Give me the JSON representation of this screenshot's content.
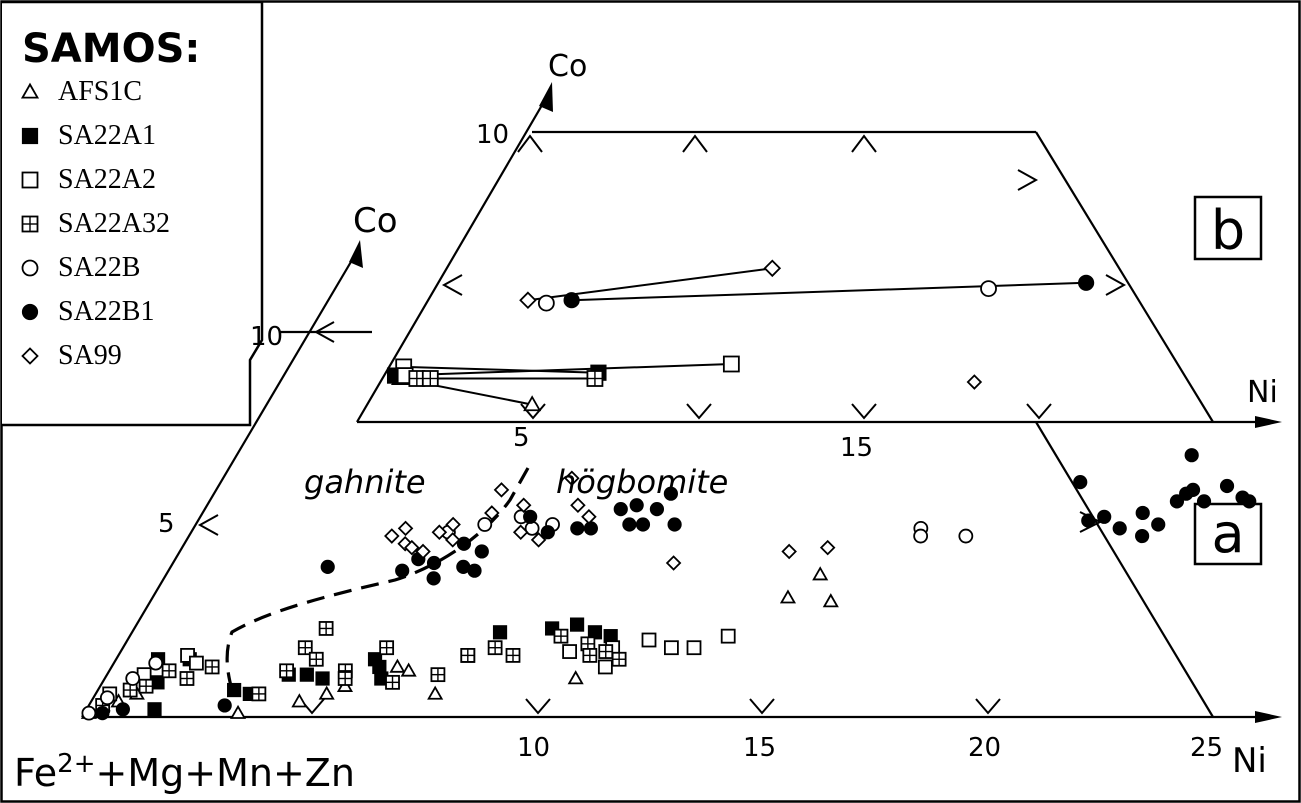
{
  "chart_data": [
    {
      "panel_label": "a",
      "type": "scatter",
      "axes": {
        "x": {
          "label": "Ni",
          "ticks": [
            "10",
            "15",
            "20",
            "25"
          ],
          "range": [
            0,
            25
          ]
        },
        "y": {
          "label": "Co",
          "ticks": [
            "5",
            "10"
          ],
          "range": [
            0,
            12
          ]
        },
        "origin_label": "Fe²⁺+Mg+Mn+Zn"
      },
      "annotations": [
        "gahnite",
        "högbomite"
      ],
      "series": [
        {
          "name": "AFS1C",
          "marker": "triangle-open",
          "points": [
            [
              0.1,
              0.1
            ],
            [
              0.3,
              0.3
            ],
            [
              0.6,
              0.4
            ],
            [
              0.9,
              0.6
            ],
            [
              3.4,
              0.1
            ],
            [
              4.6,
              0.4
            ],
            [
              5.1,
              0.6
            ],
            [
              5.4,
              0.8
            ],
            [
              6.3,
              1.3
            ],
            [
              6.6,
              1.2
            ],
            [
              7.5,
              0.6
            ],
            [
              10.4,
              1.0
            ],
            [
              14.0,
              3.1
            ],
            [
              14.4,
              3.7
            ],
            [
              15.0,
              3.0
            ]
          ]
        },
        {
          "name": "SA22A1",
          "marker": "square-filled",
          "points": [
            [
              0.9,
              1.5
            ],
            [
              1.2,
              0.9
            ],
            [
              1.5,
              0.2
            ],
            [
              1.6,
              1.5
            ],
            [
              3.0,
              0.7
            ],
            [
              3.4,
              0.6
            ],
            [
              4.0,
              1.1
            ],
            [
              4.4,
              1.1
            ],
            [
              4.8,
              1.0
            ],
            [
              5.7,
              1.5
            ],
            [
              5.9,
              1.3
            ],
            [
              6.1,
              1.0
            ],
            [
              8.1,
              2.2
            ],
            [
              9.2,
              2.3
            ],
            [
              9.7,
              2.4
            ],
            [
              10.2,
              2.2
            ],
            [
              10.6,
              2.1
            ]
          ]
        },
        {
          "name": "SA22A2",
          "marker": "square-open",
          "points": [
            [
              0.3,
              0.6
            ],
            [
              0.8,
              1.1
            ],
            [
              1.5,
              1.6
            ],
            [
              1.8,
              1.4
            ],
            [
              7.7,
              1.6
            ],
            [
              9.9,
              1.7
            ],
            [
              10.8,
              1.8
            ],
            [
              10.9,
              1.3
            ],
            [
              11.5,
              2.0
            ],
            [
              12.1,
              1.8
            ],
            [
              12.6,
              1.8
            ],
            [
              13.2,
              2.1
            ]
          ]
        },
        {
          "name": "SA22A32",
          "marker": "square-plus",
          "points": [
            [
              0.3,
              0.3
            ],
            [
              0.7,
              0.7
            ],
            [
              1.0,
              0.8
            ],
            [
              1.3,
              1.2
            ],
            [
              1.8,
              1.0
            ],
            [
              2.2,
              1.3
            ],
            [
              3.6,
              0.6
            ],
            [
              3.9,
              1.2
            ],
            [
              4.0,
              1.8
            ],
            [
              4.2,
              2.3
            ],
            [
              4.4,
              1.5
            ],
            [
              5.2,
              1.2
            ],
            [
              5.3,
              1.0
            ],
            [
              5.8,
              1.8
            ],
            [
              6.4,
              0.9
            ],
            [
              7.3,
              1.1
            ],
            [
              7.7,
              1.6
            ],
            [
              8.2,
              1.8
            ],
            [
              8.7,
              1.6
            ],
            [
              9.5,
              2.1
            ],
            [
              10.2,
              1.9
            ],
            [
              10.4,
              1.6
            ],
            [
              10.7,
              1.7
            ],
            [
              11.1,
              1.5
            ]
          ]
        },
        {
          "name": "SA22B",
          "marker": "circle-open",
          "points": [
            [
              0.1,
              0.1
            ],
            [
              0.3,
              0.5
            ],
            [
              0.6,
              1.0
            ],
            [
              0.9,
              1.4
            ],
            [
              5.6,
              4.8
            ],
            [
              6.3,
              5.0
            ],
            [
              7.0,
              5.2
            ],
            [
              7.4,
              4.9
            ],
            [
              7.8,
              5.0
            ],
            [
              16.0,
              4.9
            ],
            [
              16.1,
              4.7
            ],
            [
              17.1,
              4.7
            ]
          ]
        },
        {
          "name": "SA22B1",
          "marker": "circle-filled",
          "points": [
            [
              0.4,
              0.1
            ],
            [
              0.8,
              0.2
            ],
            [
              3.0,
              0.3
            ],
            [
              3.4,
              3.9
            ],
            [
              5.1,
              3.8
            ],
            [
              5.3,
              4.1
            ],
            [
              5.7,
              4.0
            ],
            [
              5.9,
              3.6
            ],
            [
              6.1,
              4.5
            ],
            [
              6.4,
              3.9
            ],
            [
              6.6,
              4.3
            ],
            [
              6.7,
              3.8
            ],
            [
              7.2,
              5.2
            ],
            [
              7.8,
              4.8
            ],
            [
              8.4,
              4.9
            ],
            [
              8.7,
              4.9
            ],
            [
              9.1,
              5.4
            ],
            [
              9.4,
              5.5
            ],
            [
              9.5,
              5.0
            ],
            [
              9.8,
              5.0
            ],
            [
              9.9,
              5.4
            ],
            [
              10.0,
              5.8
            ],
            [
              10.5,
              5.0
            ],
            [
              18.9,
              6.1
            ],
            [
              19.6,
              5.1
            ],
            [
              19.9,
              5.2
            ],
            [
              20.4,
              4.9
            ],
            [
              20.7,
              5.3
            ],
            [
              21.0,
              6.8
            ],
            [
              21.0,
              4.7
            ],
            [
              21.2,
              5.0
            ],
            [
              21.3,
              5.6
            ],
            [
              21.4,
              5.8
            ],
            [
              21.5,
              5.9
            ],
            [
              21.9,
              5.6
            ],
            [
              22.2,
              6.0
            ],
            [
              22.7,
              5.7
            ],
            [
              22.9,
              5.6
            ]
          ]
        },
        {
          "name": "SA99",
          "marker": "diamond-open",
          "points": [
            [
              4.4,
              4.7
            ],
            [
              4.6,
              4.9
            ],
            [
              4.8,
              4.5
            ],
            [
              5.0,
              4.4
            ],
            [
              5.3,
              4.3
            ],
            [
              5.4,
              4.8
            ],
            [
              5.6,
              5.0
            ],
            [
              5.8,
              4.6
            ],
            [
              6.3,
              5.3
            ],
            [
              6.2,
              5.9
            ],
            [
              6.9,
              5.5
            ],
            [
              7.2,
              4.8
            ],
            [
              7.7,
              4.6
            ],
            [
              7.6,
              6.2
            ],
            [
              8.1,
              5.5
            ],
            [
              8.5,
              5.2
            ],
            [
              11.0,
              4.0
            ],
            [
              13.4,
              4.3
            ],
            [
              14.2,
              4.4
            ],
            [
              15.2,
              8.7
            ]
          ]
        }
      ]
    },
    {
      "panel_label": "b",
      "type": "scatter",
      "axes": {
        "x": {
          "label": "Ni",
          "ticks": [
            "5",
            "15"
          ],
          "range": [
            0,
            20
          ]
        },
        "y": {
          "label": "Co",
          "ticks": [
            "10"
          ],
          "range": [
            0,
            10
          ]
        }
      },
      "series": [
        {
          "name": "AFS1C",
          "marker": "triangle-open",
          "points": [
            [
              0.5,
              1.5
            ],
            [
              0.6,
              1.6
            ],
            [
              4.9,
              0.6
            ]
          ]
        },
        {
          "name": "SA22A1",
          "marker": "square-filled",
          "points": [
            [
              0.3,
              1.6
            ],
            [
              6.3,
              1.7
            ]
          ]
        },
        {
          "name": "SA22A2",
          "marker": "square-open",
          "points": [
            [
              0.4,
              1.9
            ],
            [
              0.6,
              1.6
            ],
            [
              10.1,
              2.0
            ]
          ]
        },
        {
          "name": "SA22A32",
          "marker": "square-plus",
          "points": [
            [
              1.0,
              1.5
            ],
            [
              1.4,
              1.5
            ],
            [
              6.3,
              1.5
            ]
          ]
        },
        {
          "name": "SA22B",
          "marker": "circle-open",
          "points": [
            [
              3.5,
              4.1
            ],
            [
              16.4,
              4.6
            ]
          ]
        },
        {
          "name": "SA22B1",
          "marker": "circle-filled",
          "points": [
            [
              4.2,
              4.2
            ],
            [
              19.2,
              4.8
            ]
          ]
        },
        {
          "name": "SA99",
          "marker": "diamond-open",
          "points": [
            [
              2.9,
              4.2
            ],
            [
              9.6,
              5.3
            ]
          ]
        }
      ],
      "tie_lines": [
        {
          "from": [
            0.4,
            1.9
          ],
          "to": [
            6.3,
            1.7
          ]
        },
        {
          "from": [
            0.5,
            1.5
          ],
          "to": [
            6.3,
            1.5
          ]
        },
        {
          "from": [
            0.5,
            1.5
          ],
          "to": [
            4.9,
            0.6
          ]
        },
        {
          "from": [
            4.2,
            4.2
          ],
          "to": [
            19.2,
            4.8
          ]
        },
        {
          "from": [
            2.9,
            4.2
          ],
          "to": [
            9.6,
            5.3
          ]
        },
        {
          "from": [
            0.3,
            1.6
          ],
          "to": [
            10.1,
            2.0
          ]
        }
      ]
    }
  ],
  "legend": {
    "title": "SAMOS:",
    "entries": [
      {
        "marker": "triangle-open",
        "label": "AFS1C"
      },
      {
        "marker": "square-filled",
        "label": "SA22A1"
      },
      {
        "marker": "square-open",
        "label": "SA22A2"
      },
      {
        "marker": "square-plus",
        "label": "SA22A32"
      },
      {
        "marker": "circle-open",
        "label": "SA22B"
      },
      {
        "marker": "circle-filled",
        "label": "SA22B1"
      },
      {
        "marker": "diamond-open",
        "label": "SA99"
      }
    ]
  },
  "labels": {
    "panel_a": "a",
    "panel_b": "b",
    "gahnite": "gahnite",
    "hogbomite": "högbomite",
    "axis_co": "Co",
    "axis_ni": "Ni",
    "origin": "Fe",
    "origin_sup": "2+",
    "origin_rest": "+Mg+Mn+Zn"
  }
}
